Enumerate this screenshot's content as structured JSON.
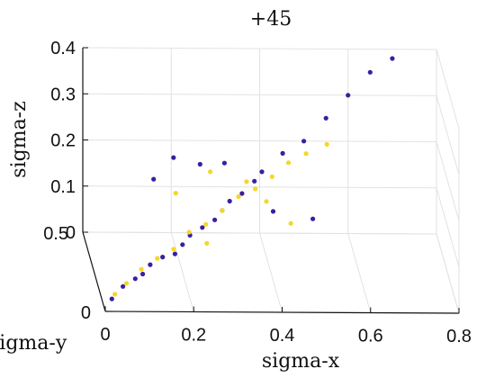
{
  "chart_data": {
    "type": "scatter",
    "title": "+45",
    "xlabel": "sigma-x",
    "ylabel": "sigma-y",
    "zlabel": "sigma-z",
    "xlim": [
      0,
      0.8
    ],
    "ylim": [
      0,
      0.5
    ],
    "zlim": [
      0,
      0.4
    ],
    "x_ticks": [
      "0",
      "0.2",
      "0.4",
      "0.6",
      "0.8"
    ],
    "y_ticks": [
      "0",
      "0.5"
    ],
    "z_ticks": [
      "0",
      "0.1",
      "0.2",
      "0.3",
      "0.4"
    ],
    "grid": true,
    "projection": "3d",
    "series": [
      {
        "color": "#3a1fa0",
        "points": [
          [
            0.02,
            0.05,
            0.01
          ],
          [
            0.05,
            0.1,
            0.02
          ],
          [
            0.08,
            0.12,
            0.03
          ],
          [
            0.1,
            0.15,
            0.03
          ],
          [
            0.12,
            0.18,
            0.04
          ],
          [
            0.15,
            0.2,
            0.05
          ],
          [
            0.18,
            0.22,
            0.05
          ],
          [
            0.2,
            0.25,
            0.06
          ],
          [
            0.22,
            0.28,
            0.07
          ],
          [
            0.25,
            0.3,
            0.08
          ],
          [
            0.28,
            0.32,
            0.09
          ],
          [
            0.3,
            0.35,
            0.1
          ],
          [
            0.32,
            0.38,
            0.11
          ],
          [
            0.35,
            0.4,
            0.12
          ],
          [
            0.38,
            0.42,
            0.14
          ],
          [
            0.4,
            0.45,
            0.15
          ],
          [
            0.45,
            0.48,
            0.18
          ],
          [
            0.5,
            0.5,
            0.2
          ],
          [
            0.55,
            0.5,
            0.25
          ],
          [
            0.6,
            0.5,
            0.3
          ],
          [
            0.65,
            0.5,
            0.35
          ],
          [
            0.7,
            0.5,
            0.38
          ],
          [
            0.15,
            0.4,
            0.15
          ],
          [
            0.2,
            0.45,
            0.18
          ],
          [
            0.25,
            0.35,
            0.2
          ],
          [
            0.3,
            0.3,
            0.22
          ],
          [
            0.4,
            0.2,
            0.15
          ],
          [
            0.5,
            0.3,
            0.1
          ]
        ]
      },
      {
        "color": "#f5d726",
        "points": [
          [
            0.03,
            0.08,
            0.01
          ],
          [
            0.06,
            0.12,
            0.02
          ],
          [
            0.1,
            0.18,
            0.03
          ],
          [
            0.14,
            0.22,
            0.04
          ],
          [
            0.18,
            0.25,
            0.05
          ],
          [
            0.22,
            0.3,
            0.07
          ],
          [
            0.26,
            0.32,
            0.08
          ],
          [
            0.3,
            0.35,
            0.1
          ],
          [
            0.34,
            0.38,
            0.12
          ],
          [
            0.38,
            0.4,
            0.13
          ],
          [
            0.42,
            0.42,
            0.15
          ],
          [
            0.46,
            0.45,
            0.17
          ],
          [
            0.5,
            0.45,
            0.19
          ],
          [
            0.55,
            0.48,
            0.2
          ],
          [
            0.2,
            0.4,
            0.12
          ],
          [
            0.28,
            0.42,
            0.16
          ],
          [
            0.35,
            0.3,
            0.18
          ],
          [
            0.4,
            0.35,
            0.12
          ],
          [
            0.45,
            0.3,
            0.09
          ],
          [
            0.25,
            0.2,
            0.08
          ]
        ]
      }
    ]
  }
}
